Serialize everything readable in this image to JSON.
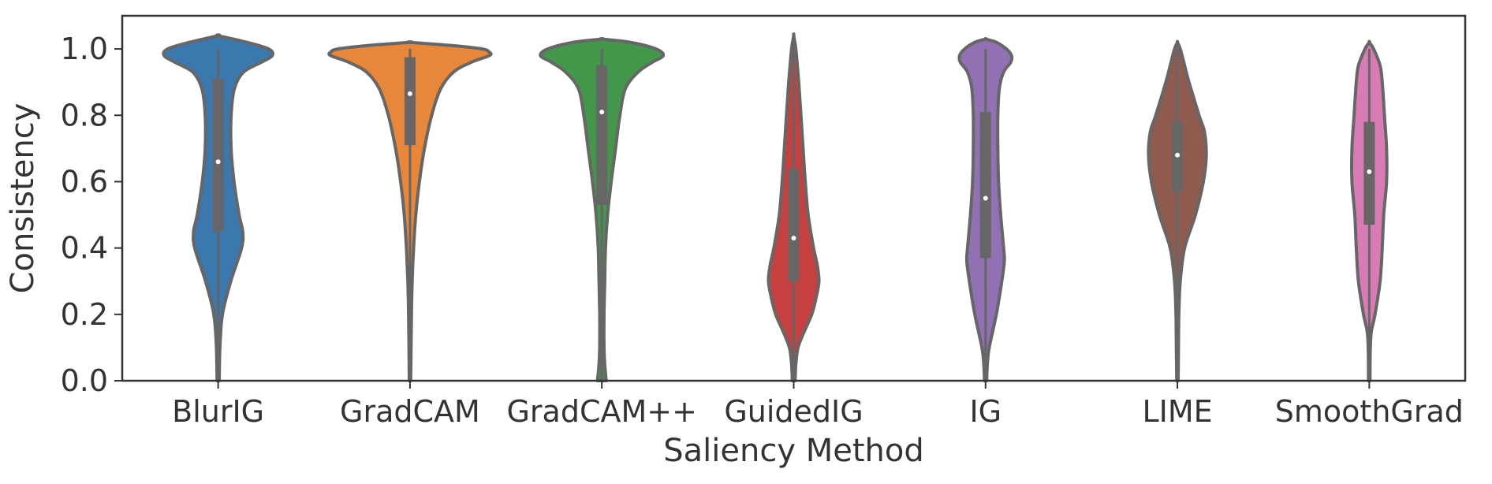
{
  "chart_data": {
    "type": "violin",
    "xlabel": "Saliency Method",
    "ylabel": "Consistency",
    "ylim": [
      0,
      1.1
    ],
    "yticks": [
      "0.0",
      "0.2",
      "0.4",
      "0.6",
      "0.8",
      "1.0"
    ],
    "grid": false,
    "legend": "none",
    "categories": [
      "BlurIG",
      "GradCAM",
      "GradCAM++",
      "GuidedIG",
      "IG",
      "LIME",
      "SmoothGrad"
    ],
    "series": [
      {
        "category": "BlurIG",
        "color": "#3a78ae",
        "median": 0.66,
        "q1": 0.45,
        "q3": 0.91,
        "whisker_low": 0.0,
        "whisker_high": 1.0,
        "min": 0.0,
        "max": 1.04,
        "profile": [
          [
            0.0,
            0.003
          ],
          [
            0.1,
            0.005
          ],
          [
            0.2,
            0.012
          ],
          [
            0.3,
            0.035
          ],
          [
            0.4,
            0.065
          ],
          [
            0.45,
            0.068
          ],
          [
            0.5,
            0.058
          ],
          [
            0.6,
            0.044
          ],
          [
            0.7,
            0.036
          ],
          [
            0.8,
            0.036
          ],
          [
            0.88,
            0.045
          ],
          [
            0.93,
            0.07
          ],
          [
            0.96,
            0.12
          ],
          [
            0.98,
            0.15
          ],
          [
            1.0,
            0.14
          ],
          [
            1.02,
            0.08
          ],
          [
            1.04,
            0.0
          ]
        ]
      },
      {
        "category": "GradCAM",
        "color": "#e8873a",
        "median": 0.865,
        "q1": 0.71,
        "q3": 0.975,
        "whisker_low": 0.0,
        "whisker_high": 1.0,
        "min": 0.0,
        "max": 1.02,
        "profile": [
          [
            0.0,
            0.002
          ],
          [
            0.2,
            0.004
          ],
          [
            0.3,
            0.006
          ],
          [
            0.4,
            0.01
          ],
          [
            0.5,
            0.016
          ],
          [
            0.6,
            0.026
          ],
          [
            0.7,
            0.04
          ],
          [
            0.8,
            0.06
          ],
          [
            0.88,
            0.085
          ],
          [
            0.93,
            0.12
          ],
          [
            0.96,
            0.17
          ],
          [
            0.98,
            0.22
          ],
          [
            0.99,
            0.22
          ],
          [
            1.0,
            0.2
          ],
          [
            1.01,
            0.12
          ],
          [
            1.02,
            0.0
          ]
        ]
      },
      {
        "category": "GradCAM++",
        "color": "#43974a",
        "median": 0.81,
        "q1": 0.53,
        "q3": 0.95,
        "whisker_low": 0.0,
        "whisker_high": 1.0,
        "min": 0.0,
        "max": 1.03,
        "profile": [
          [
            0.0,
            0.012
          ],
          [
            0.05,
            0.008
          ],
          [
            0.1,
            0.006
          ],
          [
            0.2,
            0.006
          ],
          [
            0.3,
            0.008
          ],
          [
            0.4,
            0.01
          ],
          [
            0.5,
            0.016
          ],
          [
            0.6,
            0.026
          ],
          [
            0.7,
            0.038
          ],
          [
            0.8,
            0.05
          ],
          [
            0.88,
            0.065
          ],
          [
            0.93,
            0.1
          ],
          [
            0.96,
            0.14
          ],
          [
            0.98,
            0.17
          ],
          [
            1.0,
            0.15
          ],
          [
            1.02,
            0.08
          ],
          [
            1.03,
            0.0
          ]
        ]
      },
      {
        "category": "GuidedIG",
        "color": "#c6403f",
        "median": 0.43,
        "q1": 0.3,
        "q3": 0.64,
        "whisker_low": 0.0,
        "whisker_high": 1.0,
        "min": 0.0,
        "max": 1.04,
        "profile": [
          [
            0.0,
            0.004
          ],
          [
            0.05,
            0.006
          ],
          [
            0.1,
            0.012
          ],
          [
            0.15,
            0.03
          ],
          [
            0.2,
            0.05
          ],
          [
            0.25,
            0.062
          ],
          [
            0.3,
            0.07
          ],
          [
            0.35,
            0.065
          ],
          [
            0.4,
            0.055
          ],
          [
            0.5,
            0.04
          ],
          [
            0.6,
            0.032
          ],
          [
            0.7,
            0.026
          ],
          [
            0.8,
            0.02
          ],
          [
            0.9,
            0.014
          ],
          [
            0.95,
            0.01
          ],
          [
            1.0,
            0.006
          ],
          [
            1.04,
            0.0
          ]
        ]
      },
      {
        "category": "IG",
        "color": "#9170b4",
        "median": 0.55,
        "q1": 0.37,
        "q3": 0.81,
        "whisker_low": 0.0,
        "whisker_high": 1.0,
        "min": 0.0,
        "max": 1.03,
        "profile": [
          [
            0.0,
            0.003
          ],
          [
            0.05,
            0.005
          ],
          [
            0.1,
            0.01
          ],
          [
            0.2,
            0.03
          ],
          [
            0.3,
            0.045
          ],
          [
            0.36,
            0.052
          ],
          [
            0.4,
            0.05
          ],
          [
            0.5,
            0.042
          ],
          [
            0.6,
            0.036
          ],
          [
            0.7,
            0.034
          ],
          [
            0.8,
            0.034
          ],
          [
            0.88,
            0.038
          ],
          [
            0.93,
            0.05
          ],
          [
            0.96,
            0.07
          ],
          [
            0.98,
            0.072
          ],
          [
            1.0,
            0.058
          ],
          [
            1.02,
            0.03
          ],
          [
            1.03,
            0.0
          ]
        ]
      },
      {
        "category": "LIME",
        "color": "#8f5b4e",
        "median": 0.68,
        "q1": 0.57,
        "q3": 0.78,
        "whisker_low": 0.0,
        "whisker_high": 1.0,
        "min": 0.0,
        "max": 1.02,
        "profile": [
          [
            0.0,
            0.002
          ],
          [
            0.1,
            0.003
          ],
          [
            0.2,
            0.004
          ],
          [
            0.3,
            0.008
          ],
          [
            0.4,
            0.02
          ],
          [
            0.5,
            0.05
          ],
          [
            0.6,
            0.072
          ],
          [
            0.68,
            0.08
          ],
          [
            0.75,
            0.075
          ],
          [
            0.8,
            0.06
          ],
          [
            0.9,
            0.032
          ],
          [
            0.95,
            0.02
          ],
          [
            1.0,
            0.008
          ],
          [
            1.02,
            0.0
          ]
        ]
      },
      {
        "category": "SmoothGrad",
        "color": "#d97cb6",
        "median": 0.63,
        "q1": 0.47,
        "q3": 0.78,
        "whisker_low": 0.0,
        "whisker_high": 1.0,
        "min": 0.0,
        "max": 1.02,
        "profile": [
          [
            0.0,
            0.002
          ],
          [
            0.1,
            0.003
          ],
          [
            0.15,
            0.006
          ],
          [
            0.2,
            0.016
          ],
          [
            0.3,
            0.03
          ],
          [
            0.4,
            0.036
          ],
          [
            0.5,
            0.04
          ],
          [
            0.6,
            0.048
          ],
          [
            0.7,
            0.048
          ],
          [
            0.8,
            0.042
          ],
          [
            0.9,
            0.036
          ],
          [
            0.95,
            0.03
          ],
          [
            1.0,
            0.012
          ],
          [
            1.02,
            0.0
          ]
        ]
      }
    ]
  }
}
